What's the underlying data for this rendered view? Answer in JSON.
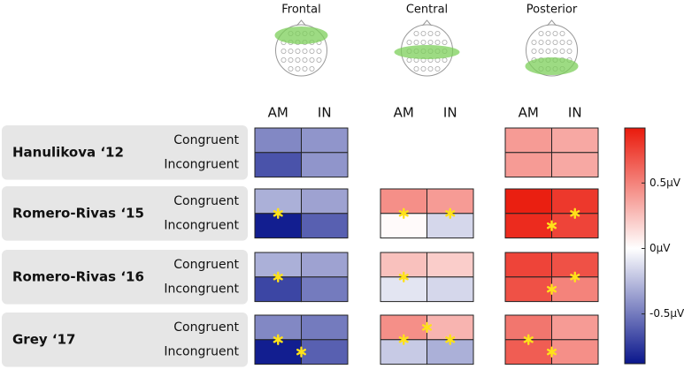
{
  "chart_data": {
    "type": "heatmap",
    "regions": [
      "Frontal",
      "Central",
      "Posterior"
    ],
    "columns": [
      "AM",
      "IN"
    ],
    "rows": [
      "Congruent",
      "Incongruent"
    ],
    "clim": [
      -0.88,
      0.92
    ],
    "colormap": [
      "#0a168c",
      "#ffffff",
      "#ea1a0c"
    ],
    "star_color": "#ffe21a",
    "colorbar_ticks": [
      {
        "value": 0.5,
        "label": "0.5µV"
      },
      {
        "value": 0,
        "label": "0µV"
      },
      {
        "value": -0.5,
        "label": "-0.5µV"
      }
    ],
    "studies": [
      {
        "name": "Hanulikova ‘12",
        "values": [
          [
            [
              -0.45,
              -0.4
            ],
            [
              -0.65,
              -0.4
            ]
          ],
          null,
          [
            [
              0.4,
              0.35
            ],
            [
              0.4,
              0.35
            ]
          ]
        ],
        "stars": []
      },
      {
        "name": "Romero-Rivas ‘15",
        "values": [
          [
            [
              -0.3,
              -0.35
            ],
            [
              -0.85,
              -0.6
            ]
          ],
          [
            [
              0.45,
              0.4
            ],
            [
              0.02,
              -0.15
            ]
          ],
          [
            [
              0.9,
              0.8
            ],
            [
              0.85,
              0.75
            ]
          ]
        ],
        "stars": [
          {
            "region": 0,
            "x": 0.5,
            "y": 1
          },
          {
            "region": 1,
            "x": 0.5,
            "y": 1
          },
          {
            "region": 1,
            "x": 1.5,
            "y": 1
          },
          {
            "region": 2,
            "x": 1.5,
            "y": 1
          },
          {
            "region": 2,
            "x": 1,
            "y": 1.5
          }
        ]
      },
      {
        "name": "Romero-Rivas ‘16",
        "values": [
          [
            [
              -0.3,
              -0.35
            ],
            [
              -0.7,
              -0.5
            ]
          ],
          [
            [
              0.25,
              0.2
            ],
            [
              -0.1,
              -0.15
            ]
          ],
          [
            [
              0.75,
              0.7
            ],
            [
              0.7,
              0.5
            ]
          ]
        ],
        "stars": [
          {
            "region": 0,
            "x": 0.5,
            "y": 1
          },
          {
            "region": 1,
            "x": 0.5,
            "y": 1
          },
          {
            "region": 2,
            "x": 1.5,
            "y": 1
          },
          {
            "region": 2,
            "x": 1,
            "y": 1.5
          }
        ]
      },
      {
        "name": "Grey ‘17",
        "values": [
          [
            [
              -0.45,
              -0.5
            ],
            [
              -0.85,
              -0.6
            ]
          ],
          [
            [
              0.45,
              0.3
            ],
            [
              -0.2,
              -0.3
            ]
          ],
          [
            [
              0.55,
              0.4
            ],
            [
              0.65,
              0.45
            ]
          ]
        ],
        "stars": [
          {
            "region": 0,
            "x": 0.5,
            "y": 1
          },
          {
            "region": 0,
            "x": 1,
            "y": 1.5
          },
          {
            "region": 1,
            "x": 0.5,
            "y": 1
          },
          {
            "region": 1,
            "x": 1,
            "y": 0.5
          },
          {
            "region": 1,
            "x": 1.5,
            "y": 1
          },
          {
            "region": 2,
            "x": 0.5,
            "y": 1
          },
          {
            "region": 2,
            "x": 1,
            "y": 1.5
          }
        ]
      }
    ]
  }
}
